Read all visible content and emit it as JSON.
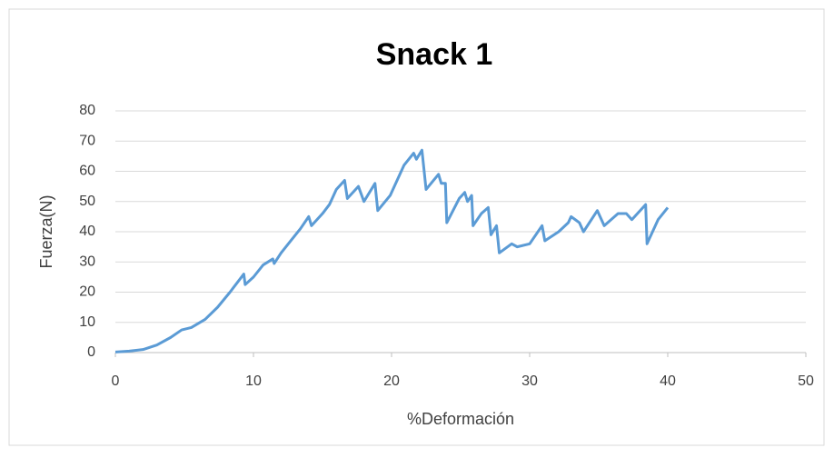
{
  "chart_data": {
    "type": "line",
    "title": "Snack 1",
    "x_label": "%Deformación",
    "y_label": "Fuerza(N)",
    "series": [
      {
        "name": "Fuerza",
        "color": "#5b9bd5",
        "x": [
          0,
          1,
          2,
          3,
          4,
          4.8,
          5.5,
          6.5,
          7.4,
          8.3,
          9.3,
          9.4,
          10,
          10.7,
          11.4,
          11.5,
          12,
          12.7,
          13.4,
          14,
          14.2,
          15,
          15.5,
          16,
          16.6,
          16.8,
          17.6,
          18,
          18.8,
          19,
          19.9,
          20.9,
          21.6,
          21.8,
          22.2,
          22.5,
          23.4,
          23.6,
          23.9,
          24,
          24.9,
          25.3,
          25.5,
          25.8,
          25.9,
          26.5,
          27,
          27.2,
          27.6,
          27.8,
          28.7,
          29.1,
          30,
          30.9,
          31.1,
          32.1,
          32.8,
          33,
          33.6,
          33.9,
          34.9,
          35.4,
          36.4,
          37,
          37.4,
          38.4,
          38.5,
          39.3,
          40
        ],
        "values": [
          0.2,
          0.5,
          1,
          2.5,
          5,
          7.5,
          8.3,
          11,
          15,
          20,
          26,
          22.5,
          25,
          29,
          31,
          29.5,
          33,
          37,
          41,
          45,
          42,
          46,
          49,
          54,
          57,
          51,
          55,
          50,
          56,
          47,
          52,
          62,
          66,
          64,
          67,
          54,
          59,
          56,
          56,
          43,
          51,
          53,
          50,
          52,
          42,
          46,
          48,
          39,
          42,
          33,
          36,
          35,
          36,
          42,
          37,
          40,
          43,
          45,
          43,
          40,
          47,
          42,
          46,
          46,
          44,
          49,
          36,
          44,
          48
        ]
      }
    ],
    "xlim": [
      0,
      50
    ],
    "xticks": [
      0,
      10,
      20,
      30,
      40,
      50
    ],
    "ylim": [
      0,
      80
    ],
    "yticks": [
      0,
      10,
      20,
      30,
      40,
      50,
      60,
      70,
      80
    ],
    "grid": true
  }
}
